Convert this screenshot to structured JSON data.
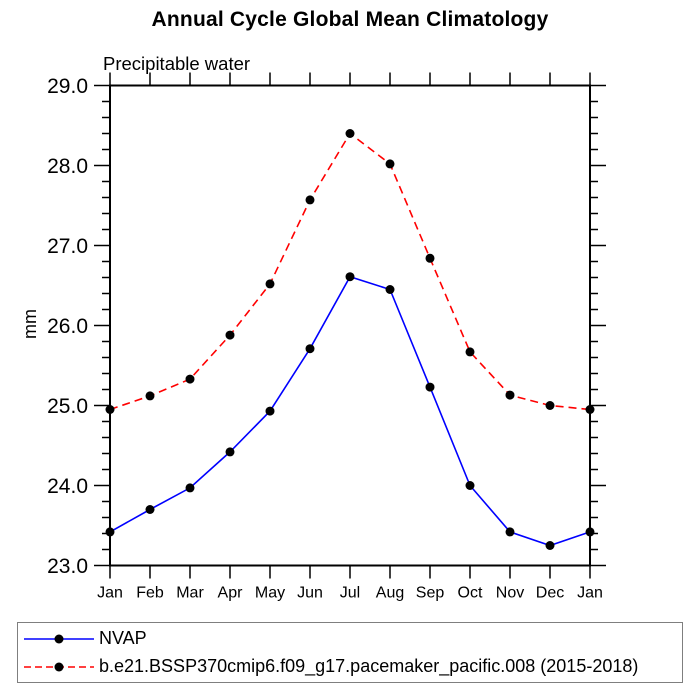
{
  "window": {
    "background": "#ffffff"
  },
  "chart_data": {
    "type": "line",
    "title": "Annual Cycle Global Mean Climatology",
    "subtitle": "Precipitable water",
    "ylabel": "mm",
    "xlabel": "",
    "x_categories": [
      "Jan",
      "Feb",
      "Mar",
      "Apr",
      "May",
      "Jun",
      "Jul",
      "Aug",
      "Sep",
      "Oct",
      "Nov",
      "Dec",
      "Jan"
    ],
    "ylim": [
      23.0,
      29.0
    ],
    "ytick_interval": 1.0,
    "yminor_interval": 0.2,
    "ytick_label_format": "one_decimal",
    "grid": false,
    "legend_position": "bottom box, below plot",
    "axis_color": "#000000",
    "marker_color": "#000000",
    "series": [
      {
        "name": "NVAP",
        "color": "#0000ff",
        "line_style": "solid",
        "marker": "filled-circle",
        "values": [
          23.42,
          23.7,
          23.97,
          24.42,
          24.93,
          25.71,
          26.61,
          26.45,
          25.23,
          24.0,
          23.42,
          23.25,
          23.42
        ]
      },
      {
        "name": "b.e21.BSSP370cmip6.f09_g17.pacemaker_pacific.008 (2015-2018)",
        "color": "#ff0000",
        "line_style": "dashed",
        "marker": "filled-circle",
        "values": [
          24.95,
          25.12,
          25.33,
          25.88,
          26.52,
          27.57,
          28.4,
          28.02,
          26.84,
          25.67,
          25.13,
          25.0,
          24.95
        ]
      }
    ]
  }
}
